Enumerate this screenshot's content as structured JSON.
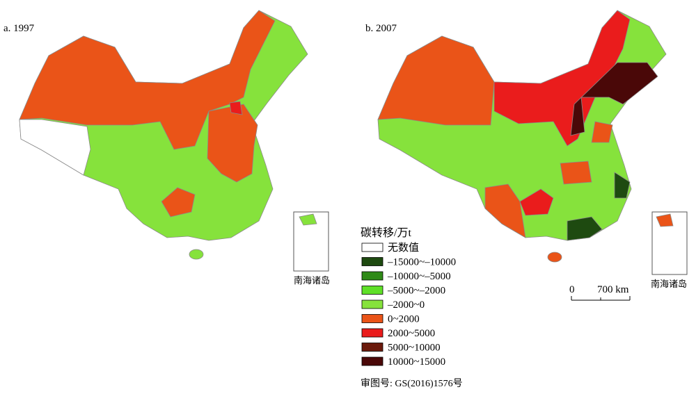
{
  "panels": [
    {
      "label": "a. 1997"
    },
    {
      "label": "b. 2007"
    }
  ],
  "inset_label": "南海诸岛",
  "legend": {
    "title": "碳转移/万t",
    "items": [
      {
        "label": "无数值",
        "color": "#ffffff"
      },
      {
        "label": "–15000~–10000",
        "color": "#1e4a10"
      },
      {
        "label": "–10000~–5000",
        "color": "#2f8a17"
      },
      {
        "label": "–5000~–2000",
        "color": "#5fe028"
      },
      {
        "label": "–2000~0",
        "color": "#86e23c"
      },
      {
        "label": "0~2000",
        "color": "#ea5418"
      },
      {
        "label": "2000~5000",
        "color": "#ea1c1c"
      },
      {
        "label": "5000~10000",
        "color": "#6a1a0c"
      },
      {
        "label": "10000~15000",
        "color": "#4a0808"
      }
    ]
  },
  "scale": {
    "start": "0",
    "end": "700 km"
  },
  "approval": "审图号: GS(2016)1576号"
}
